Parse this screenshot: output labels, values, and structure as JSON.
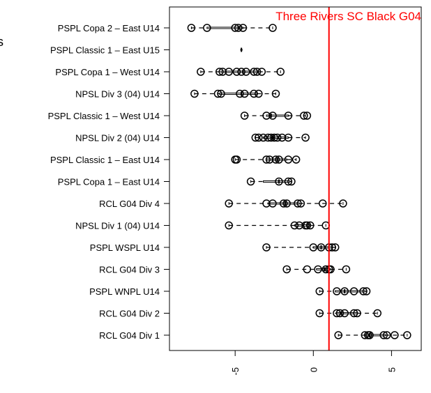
{
  "page_edge_glyph": "s",
  "chart_data": {
    "type": "boxplot",
    "orientation": "horizontal",
    "title": "",
    "xlabel": "",
    "ylabel": "",
    "xlim": [
      -9.2,
      6.9
    ],
    "x_ticks": [
      -5,
      0,
      5
    ],
    "x_tick_labels": [
      "-5",
      "0",
      "5"
    ],
    "grid": false,
    "reference_line": {
      "value": 1.0,
      "label": "Three Rivers SC Black G04",
      "color": "#ff0000"
    },
    "categories": [
      "PSPL Copa 2 – East U14",
      "PSPL Classic 1 – East U15",
      "PSPL Copa 1 – West U14",
      "NPSL Div 3 (04) U14",
      "PSPL Classic 1 – West U14",
      "NPSL Div 2 (04) U14",
      "PSPL Classic 1 – East U14",
      "PSPL Copa 1 – East U14",
      "RCL G04 Div 4",
      "NPSL Div 1 (04) U14",
      "PSPL WSPL U14",
      "RCL G04 Div 3",
      "PSPL WNPL U14",
      "RCL G04 Div 2",
      "RCL G04 Div 1"
    ],
    "series": [
      {
        "min": -7.8,
        "q1": -6.8,
        "median": -4.8,
        "q3": -4.5,
        "max": -2.6,
        "points": [
          -7.8,
          -6.8,
          -5.0,
          -4.8,
          -4.5,
          -2.6
        ]
      },
      {
        "min": -4.6,
        "q1": -4.6,
        "median": -4.6,
        "q3": -4.6,
        "max": -4.6,
        "points": []
      },
      {
        "min": -7.2,
        "q1": -5.9,
        "median": -4.5,
        "q3": -3.5,
        "max": -2.1,
        "points": [
          -7.2,
          -6.0,
          -5.8,
          -5.4,
          -4.9,
          -4.6,
          -4.3,
          -3.8,
          -3.6,
          -3.3,
          -2.1
        ]
      },
      {
        "min": -7.6,
        "q1": -6.0,
        "median": -4.6,
        "q3": -3.6,
        "max": -2.4,
        "points": [
          -7.6,
          -6.1,
          -5.9,
          -4.7,
          -4.4,
          -3.8,
          -3.5,
          -2.4
        ]
      },
      {
        "min": -4.4,
        "q1": -3.0,
        "median": -2.7,
        "q3": -1.6,
        "max": -0.5,
        "points": [
          -4.4,
          -3.0,
          -2.6,
          -1.6,
          -0.6,
          -0.4
        ]
      },
      {
        "min": -3.7,
        "q1": -3.2,
        "median": -2.6,
        "q3": -1.6,
        "max": -0.5,
        "points": [
          -3.7,
          -3.5,
          -3.2,
          -2.9,
          -2.7,
          -2.5,
          -2.3,
          -2.0,
          -1.6,
          -0.5
        ]
      },
      {
        "min": -5.0,
        "q1": -3.0,
        "median": -2.3,
        "q3": -1.7,
        "max": -1.1,
        "points": [
          -5.0,
          -4.9,
          -3.0,
          -2.8,
          -2.4,
          -2.2,
          -1.6,
          -1.1
        ]
      },
      {
        "min": -4.0,
        "q1": -3.2,
        "median": -2.2,
        "q3": -1.5,
        "max": -1.4,
        "points": [
          -4.0,
          -2.2,
          -1.6,
          -1.4
        ]
      },
      {
        "min": -5.4,
        "q1": -2.9,
        "median": -1.8,
        "q3": -0.9,
        "max": 1.9,
        "points": [
          -5.4,
          -3.0,
          -2.6,
          -1.9,
          -1.7,
          -1.0,
          -0.8,
          0.6,
          1.9
        ]
      },
      {
        "min": -5.4,
        "q1": -1.2,
        "median": -0.4,
        "q3": -0.2,
        "max": 0.8,
        "points": [
          -5.4,
          -1.2,
          -0.9,
          -0.5,
          -0.4,
          -0.2,
          0.8
        ]
      },
      {
        "min": -3.0,
        "q1": 0.0,
        "median": 0.5,
        "q3": 1.2,
        "max": 1.4,
        "points": [
          -3.0,
          0.0,
          0.5,
          1.0,
          1.2,
          1.4
        ]
      },
      {
        "min": -1.7,
        "q1": 0.2,
        "median": 0.7,
        "q3": 1.1,
        "max": 2.1,
        "points": [
          -1.7,
          -0.4,
          0.3,
          0.8,
          1.0,
          1.1,
          2.1
        ]
      },
      {
        "min": 0.4,
        "q1": 1.4,
        "median": 2.0,
        "q3": 3.3,
        "max": 3.4,
        "points": [
          0.4,
          1.5,
          2.0,
          2.6,
          3.2,
          3.4
        ]
      },
      {
        "min": 0.4,
        "q1": 1.5,
        "median": 1.8,
        "q3": 2.8,
        "max": 4.1,
        "points": [
          0.4,
          1.5,
          1.7,
          2.0,
          2.6,
          2.8,
          4.1
        ]
      },
      {
        "min": 1.6,
        "q1": 3.3,
        "median": 3.6,
        "q3": 4.6,
        "max": 6.0,
        "points": [
          1.6,
          3.3,
          3.5,
          3.6,
          4.5,
          4.7,
          5.2,
          6.0
        ]
      }
    ]
  }
}
